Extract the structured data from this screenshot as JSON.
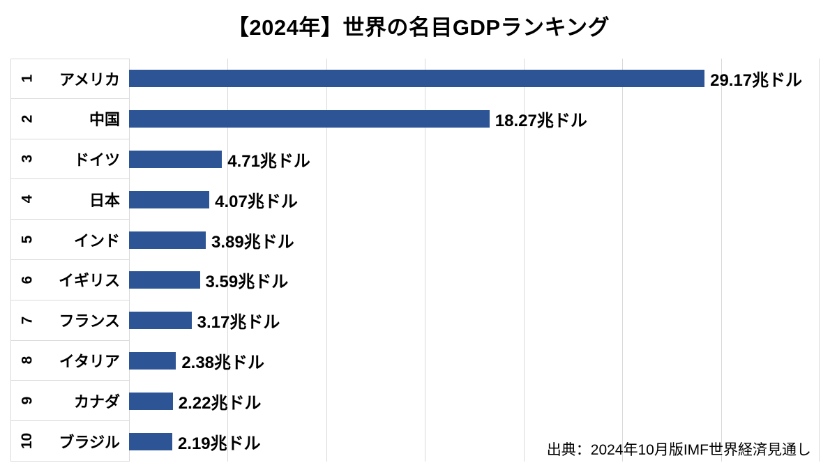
{
  "title": "【2024年】世界の名目GDPランキング",
  "source": "出典：2024年10月版IMF世界経済見通し",
  "chart_data": {
    "type": "bar",
    "orientation": "horizontal",
    "title": "【2024年】世界の名目GDPランキング",
    "unit": "兆ドル",
    "ranks": [
      "1",
      "2",
      "3",
      "4",
      "5",
      "6",
      "7",
      "8",
      "9",
      "10"
    ],
    "categories": [
      "アメリカ",
      "中国",
      "ドイツ",
      "日本",
      "インド",
      "イギリス",
      "フランス",
      "イタリア",
      "カナダ",
      "ブラジル"
    ],
    "values": [
      29.17,
      18.27,
      4.71,
      4.07,
      3.89,
      3.59,
      3.17,
      2.38,
      2.22,
      2.19
    ],
    "value_labels": [
      "29.17兆ドル",
      "18.27兆ドル",
      "4.71兆ドル",
      "4.07兆ドル",
      "3.89兆ドル",
      "3.59兆ドル",
      "3.17兆ドル",
      "2.38兆ドル",
      "2.22兆ドル",
      "2.19兆ドル"
    ],
    "xlim": [
      0,
      35
    ],
    "gridline_interval": 5,
    "grid": true,
    "legend": "none",
    "bar_color": "#2d5596",
    "gridline_color": "#d9d9d9",
    "label_color": "#000000",
    "source": "出典：2024年10月版IMF世界経済見通し"
  }
}
